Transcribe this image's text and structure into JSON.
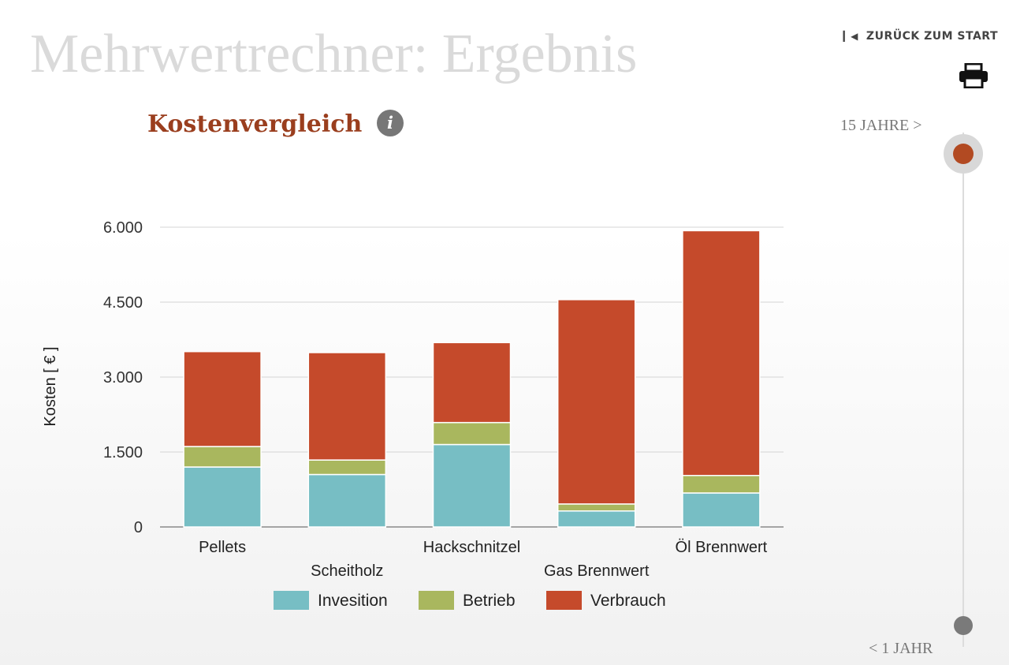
{
  "header": {
    "title": "Mehrwertrechner: Ergebnis",
    "back_label": "ZURÜCK ZUM START",
    "back_icon": "skip-back-icon",
    "print_icon": "printer-icon"
  },
  "section": {
    "title": "Kostenvergleich",
    "info_icon": "i"
  },
  "slider": {
    "top_label": "15 JAHRE >",
    "bottom_label": "< 1 JAHR"
  },
  "chart_data": {
    "type": "bar",
    "stacked": true,
    "categories": [
      "Pellets",
      "Scheitholz",
      "Hackschnitzel",
      "Gas Brennwert",
      "Öl Brennwert"
    ],
    "series": [
      {
        "name": "Invesition",
        "color": "#77bec4",
        "values": [
          1200,
          1050,
          1650,
          320,
          680
        ]
      },
      {
        "name": "Betrieb",
        "color": "#a9b75e",
        "values": [
          410,
          290,
          440,
          140,
          350
        ]
      },
      {
        "name": "Verbrauch",
        "color": "#c54a2b",
        "values": [
          1900,
          2150,
          1600,
          4090,
          4900
        ]
      }
    ],
    "ylabel": "Kosten [ € ]",
    "ylim": [
      0,
      6000
    ],
    "yticks": [
      "0",
      "1.500",
      "3.000",
      "4.500",
      "6.000"
    ],
    "ytick_values": [
      0,
      1500,
      3000,
      4500,
      6000
    ],
    "grid": true,
    "legend_position": "bottom"
  }
}
